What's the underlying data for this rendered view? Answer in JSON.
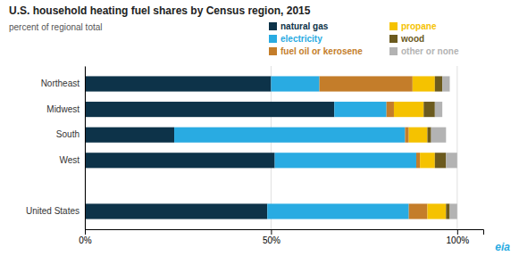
{
  "chart_data": {
    "type": "bar",
    "orientation": "horizontal",
    "stacked": true,
    "title": "U.S. household heating fuel shares by Census region, 2015",
    "subtitle": "percent of regional total",
    "categories": [
      "Northeast",
      "Midwest",
      "South",
      "West",
      null,
      "United States"
    ],
    "series": [
      {
        "name": "natural gas",
        "color": "#0d3349",
        "values": [
          50,
          67,
          24,
          51,
          0,
          49
        ]
      },
      {
        "name": "electricity",
        "color": "#29abe2",
        "values": [
          13,
          14,
          62,
          38,
          0,
          38
        ]
      },
      {
        "name": "fuel oil or kerosene",
        "color": "#c47d2a",
        "values": [
          25,
          2,
          1,
          1,
          0,
          5
        ]
      },
      {
        "name": "propane",
        "color": "#f5c200",
        "values": [
          6,
          8,
          5,
          4,
          0,
          5
        ]
      },
      {
        "name": "wood",
        "color": "#6b5a1e",
        "values": [
          2,
          3,
          1,
          3,
          0,
          1
        ]
      },
      {
        "name": "other or none",
        "color": "#b3b3b3",
        "values": [
          2,
          2,
          4,
          3,
          0,
          2
        ]
      }
    ],
    "xlim": [
      0,
      107
    ],
    "xticks": [
      {
        "value": 0,
        "label": "0%"
      },
      {
        "value": 50,
        "label": "50%"
      },
      {
        "value": 100,
        "label": "100%"
      }
    ],
    "grid": true,
    "legend": "upper right",
    "annotations": [
      {
        "text": "eia",
        "color": "#29abe2"
      }
    ]
  }
}
